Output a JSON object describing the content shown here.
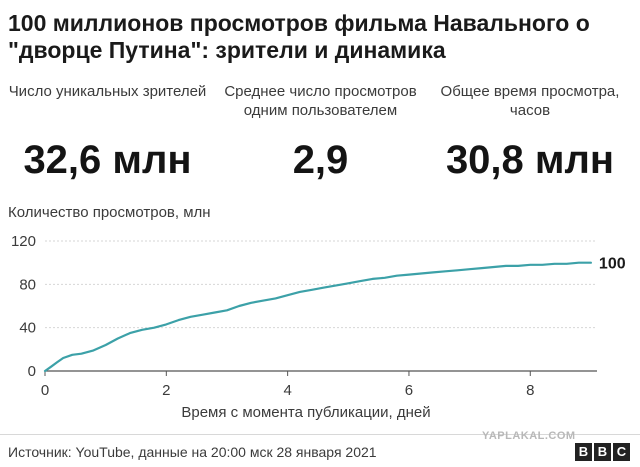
{
  "title": "100 миллионов просмотров фильма Навального о \"дворце Путина\": зрители и динамика",
  "stats": [
    {
      "label": "Число уникальных зрителей",
      "value": "32,6 млн"
    },
    {
      "label": "Среднее число просмотров одним пользователем",
      "value": "2,9"
    },
    {
      "label": "Общее время просмотра, часов",
      "value": "30,8 млн"
    }
  ],
  "footer": {
    "source": "Источник: YouTube, данные на 20:00 мск 28 января 2021",
    "watermark": "YAPLAKAL.COM",
    "logo_letters": [
      "B",
      "B",
      "C"
    ]
  },
  "chart_data": {
    "type": "line",
    "ylabel": "Количество просмотров, млн",
    "xlabel": "Время с момента публикации, дней",
    "xlim": [
      0,
      9.1
    ],
    "ylim": [
      0,
      120
    ],
    "xticks": [
      0,
      2,
      4,
      6,
      8
    ],
    "yticks": [
      0,
      40,
      80,
      120
    ],
    "grid": "horizontal",
    "color": "#3ca1a8",
    "end_label": "100",
    "series": [
      {
        "x": [
          0,
          0.1,
          0.2,
          0.3,
          0.45,
          0.6,
          0.8,
          1.0,
          1.2,
          1.4,
          1.6,
          1.8,
          2.0,
          2.2,
          2.4,
          2.6,
          2.8,
          3.0,
          3.2,
          3.4,
          3.6,
          3.8,
          4.0,
          4.2,
          4.4,
          4.6,
          4.8,
          5.0,
          5.2,
          5.4,
          5.6,
          5.8,
          6.0,
          6.2,
          6.4,
          6.6,
          6.8,
          7.0,
          7.2,
          7.4,
          7.6,
          7.8,
          8.0,
          8.2,
          8.4,
          8.6,
          8.8,
          9.0
        ],
        "y": [
          0,
          4,
          8,
          12,
          15,
          16,
          19,
          24,
          30,
          35,
          38,
          40,
          43,
          47,
          50,
          52,
          54,
          56,
          60,
          63,
          65,
          67,
          70,
          73,
          75,
          77,
          79,
          81,
          83,
          85,
          86,
          88,
          89,
          90,
          91,
          92,
          93,
          94,
          95,
          96,
          97,
          97,
          98,
          98,
          99,
          99,
          100,
          100
        ]
      }
    ]
  }
}
